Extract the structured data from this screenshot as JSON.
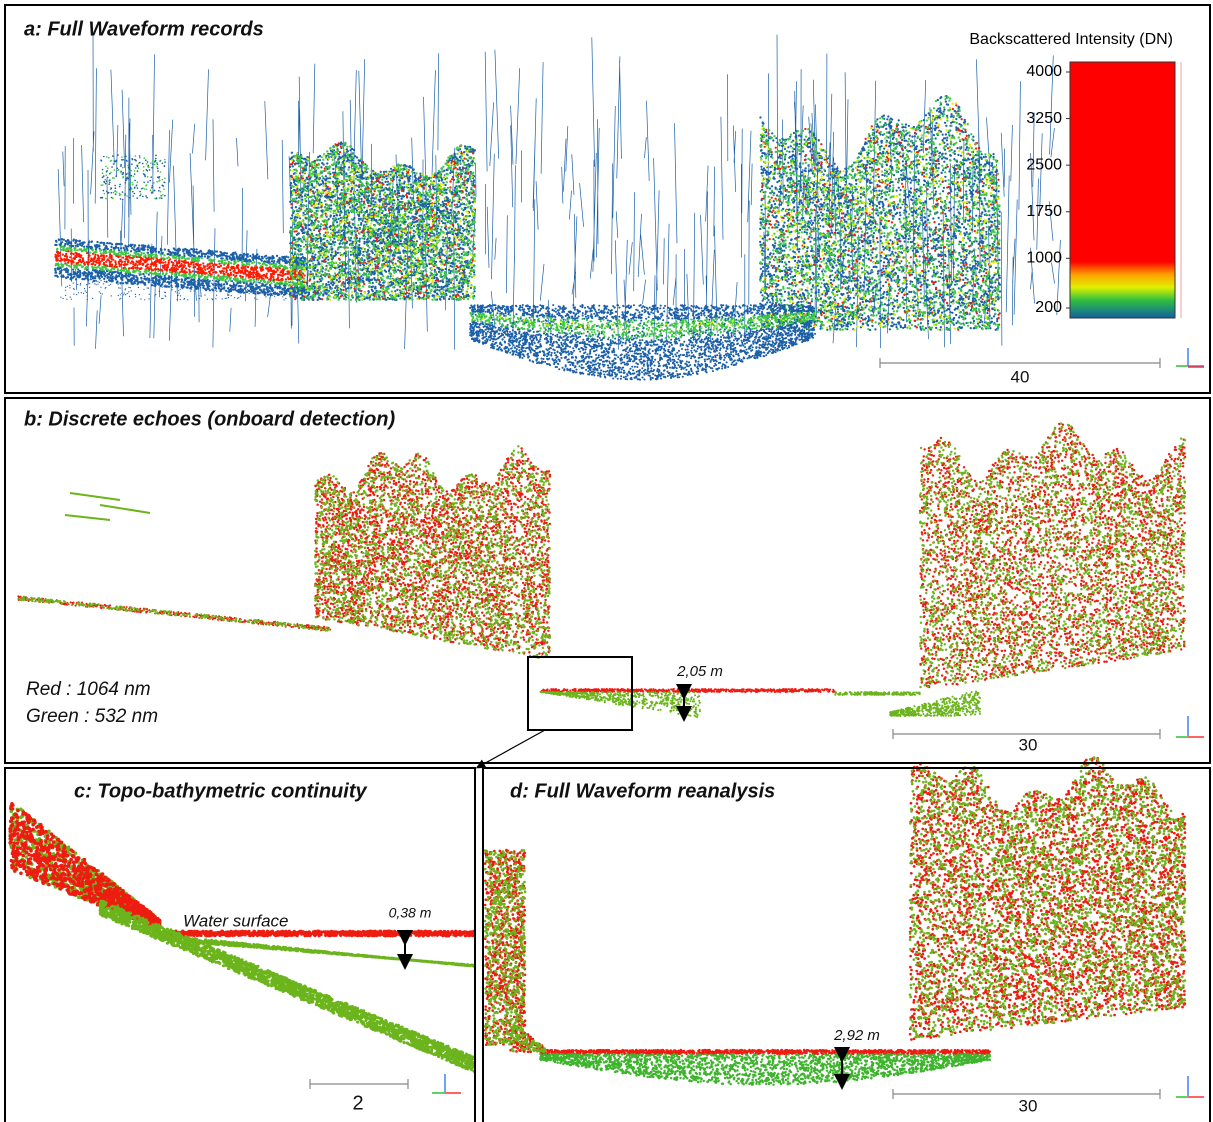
{
  "panels": [
    {
      "title": "a: Full Waveform records",
      "colorbar": {
        "title": "Backscattered Intensity (DN)",
        "range": [
          200,
          4000
        ],
        "ticks": [
          4000,
          3250,
          2500,
          1750,
          1000,
          200
        ]
      },
      "scale": 40
    },
    {
      "title": "b: Discrete echoes (onboard detection)",
      "legend": [
        "Red : 1064 nm",
        "Green : 532 nm"
      ],
      "depth": "2,05 m",
      "scale": 30
    },
    {
      "title": "c: Topo-bathymetric continuity",
      "annotation": "Water surface",
      "depth": "0,38 m",
      "scale": 2
    },
    {
      "title": "d: Full Waveform reanalysis",
      "depth": "2,92 m",
      "scale": 30
    }
  ]
}
